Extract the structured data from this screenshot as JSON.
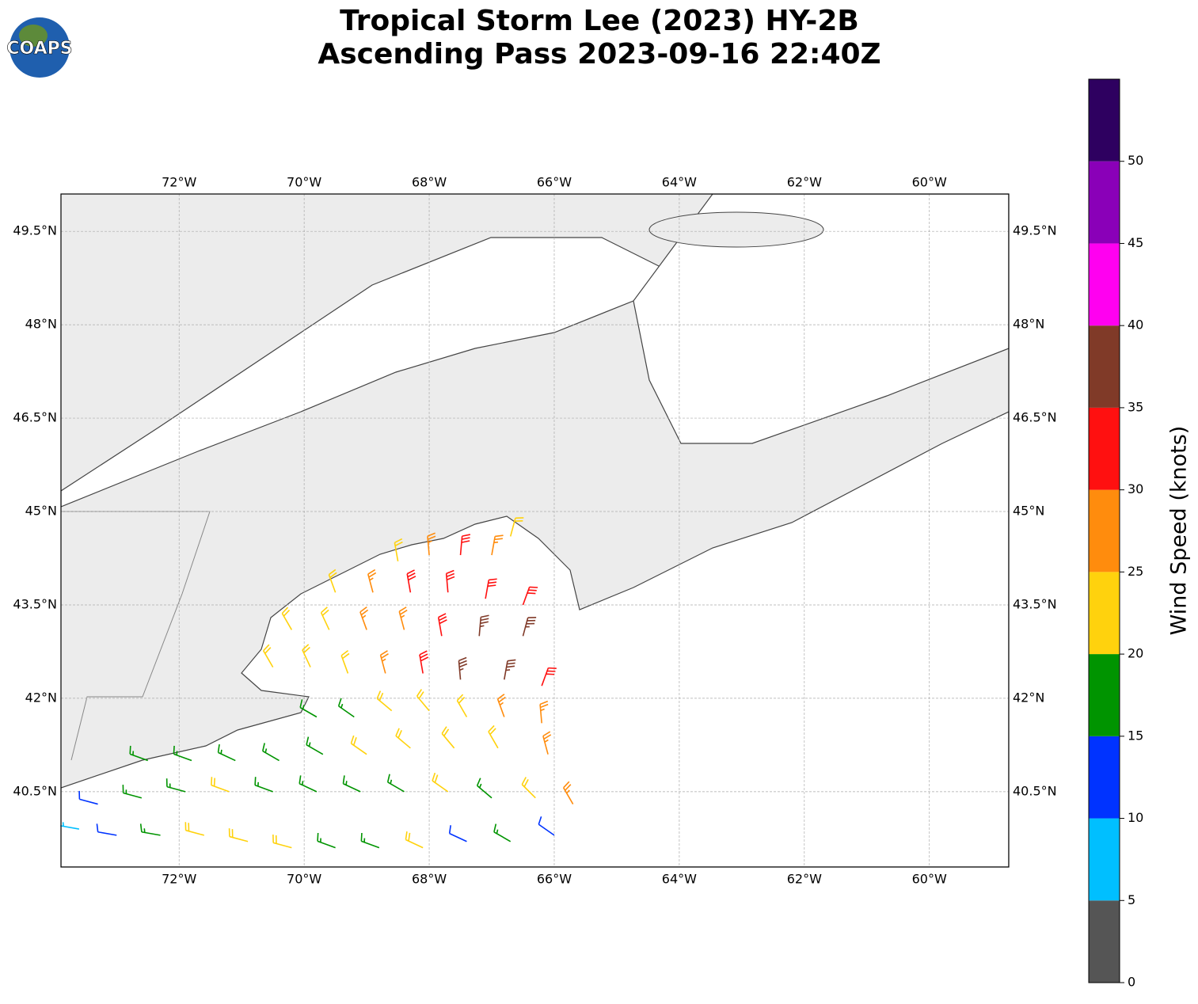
{
  "chart_data": {
    "type": "barbs",
    "title": [
      "Tropical Storm Lee (2023) HY-2B",
      "Ascending Pass 2023-09-16 22:40Z"
    ],
    "logo": "COAPS",
    "xlim": [
      -73.89,
      -58.73
    ],
    "ylim": [
      39.29,
      50.1
    ],
    "xticks": [
      {
        "value": -72,
        "label": "72°W"
      },
      {
        "value": -70,
        "label": "70°W"
      },
      {
        "value": -68,
        "label": "68°W"
      },
      {
        "value": -66,
        "label": "66°W"
      },
      {
        "value": -64,
        "label": "64°W"
      },
      {
        "value": -62,
        "label": "62°W"
      },
      {
        "value": -60,
        "label": "60°W"
      }
    ],
    "yticks": [
      {
        "value": 40.5,
        "label": "40.5°N"
      },
      {
        "value": 42,
        "label": "42°N"
      },
      {
        "value": 43.5,
        "label": "43.5°N"
      },
      {
        "value": 45,
        "label": "45°N"
      },
      {
        "value": 46.5,
        "label": "46.5°N"
      },
      {
        "value": 48,
        "label": "48°N"
      },
      {
        "value": 49.5,
        "label": "49.5°N"
      }
    ],
    "grid": true,
    "colorbar": {
      "label": "Wind Speed (knots)",
      "lim": [
        0,
        55
      ],
      "ticks": [
        0,
        5,
        10,
        15,
        20,
        25,
        30,
        35,
        40,
        45,
        50
      ],
      "bounds": [
        0,
        5,
        10,
        15,
        20,
        25,
        30,
        35,
        40,
        45,
        50,
        55
      ],
      "colors": [
        "#555555",
        "#00bfff",
        "#0033ff",
        "#009400",
        "#ffd20d",
        "#ff8c0d",
        "#ff1010",
        "#803a28",
        "#ff00f0",
        "#8a00b8",
        "#2e0060"
      ]
    },
    "barbs": [
      [
        -68.5,
        44.2,
        20,
        350
      ],
      [
        -68,
        44.3,
        25,
        355
      ],
      [
        -67.5,
        44.3,
        30,
        5
      ],
      [
        -67,
        44.3,
        25,
        10
      ],
      [
        -66.7,
        44.6,
        20,
        15
      ],
      [
        -69.5,
        43.7,
        20,
        340
      ],
      [
        -68.9,
        43.7,
        25,
        345
      ],
      [
        -68.3,
        43.7,
        30,
        350
      ],
      [
        -67.7,
        43.7,
        30,
        355
      ],
      [
        -67.1,
        43.6,
        30,
        10
      ],
      [
        -66.5,
        43.5,
        30,
        20
      ],
      [
        -70.2,
        43.1,
        20,
        330
      ],
      [
        -69.6,
        43.1,
        20,
        335
      ],
      [
        -69,
        43.1,
        25,
        340
      ],
      [
        -68.4,
        43.1,
        25,
        345
      ],
      [
        -67.8,
        43.0,
        30,
        350
      ],
      [
        -67.2,
        43.0,
        35,
        5
      ],
      [
        -66.5,
        43.0,
        35,
        15
      ],
      [
        -70.5,
        42.5,
        20,
        330
      ],
      [
        -69.9,
        42.5,
        20,
        335
      ],
      [
        -69.3,
        42.4,
        20,
        340
      ],
      [
        -68.7,
        42.4,
        25,
        345
      ],
      [
        -68.1,
        42.4,
        30,
        350
      ],
      [
        -67.5,
        42.3,
        35,
        355
      ],
      [
        -66.8,
        42.3,
        35,
        10
      ],
      [
        -66.2,
        42.2,
        30,
        20
      ],
      [
        -69.8,
        41.7,
        15,
        300
      ],
      [
        -69.2,
        41.7,
        15,
        305
      ],
      [
        -68.6,
        41.8,
        20,
        310
      ],
      [
        -68,
        41.8,
        20,
        320
      ],
      [
        -67.4,
        41.7,
        20,
        330
      ],
      [
        -66.8,
        41.7,
        25,
        340
      ],
      [
        -66.2,
        41.6,
        25,
        355
      ],
      [
        -72.5,
        41.0,
        15,
        290
      ],
      [
        -71.8,
        41.0,
        15,
        290
      ],
      [
        -71.1,
        41.0,
        15,
        295
      ],
      [
        -70.4,
        41.0,
        15,
        300
      ],
      [
        -69.7,
        41.1,
        15,
        300
      ],
      [
        -69,
        41.1,
        20,
        305
      ],
      [
        -68.3,
        41.2,
        20,
        310
      ],
      [
        -67.6,
        41.2,
        20,
        320
      ],
      [
        -66.9,
        41.2,
        20,
        330
      ],
      [
        -66.1,
        41.1,
        25,
        345
      ],
      [
        -73.3,
        40.3,
        10,
        285
      ],
      [
        -72.6,
        40.4,
        15,
        285
      ],
      [
        -71.9,
        40.5,
        15,
        285
      ],
      [
        -71.2,
        40.5,
        20,
        290
      ],
      [
        -70.5,
        40.5,
        15,
        290
      ],
      [
        -69.8,
        40.5,
        15,
        295
      ],
      [
        -69.1,
        40.5,
        15,
        295
      ],
      [
        -68.4,
        40.5,
        15,
        300
      ],
      [
        -67.7,
        40.5,
        20,
        305
      ],
      [
        -67,
        40.4,
        15,
        310
      ],
      [
        -66.3,
        40.4,
        20,
        315
      ],
      [
        -65.7,
        40.3,
        25,
        330
      ],
      [
        -73.6,
        39.9,
        5,
        280
      ],
      [
        -73,
        39.8,
        10,
        280
      ],
      [
        -72.3,
        39.8,
        15,
        280
      ],
      [
        -71.6,
        39.8,
        20,
        285
      ],
      [
        -70.9,
        39.7,
        20,
        285
      ],
      [
        -70.2,
        39.6,
        20,
        285
      ],
      [
        -69.5,
        39.6,
        15,
        290
      ],
      [
        -68.8,
        39.6,
        15,
        290
      ],
      [
        -68.1,
        39.6,
        20,
        295
      ],
      [
        -67.4,
        39.7,
        10,
        295
      ],
      [
        -66.7,
        39.7,
        15,
        300
      ],
      [
        -66,
        39.8,
        10,
        305
      ]
    ]
  }
}
